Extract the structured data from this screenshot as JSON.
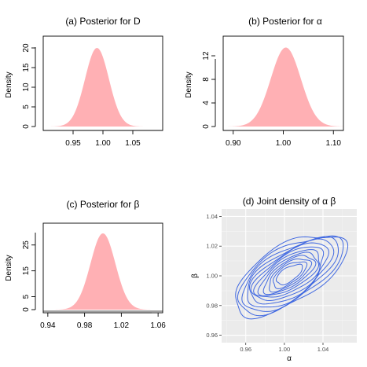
{
  "colors": {
    "density_fill": "#FFB0B4",
    "contour": "#4169E1",
    "gg_panel": "#EBEBEB",
    "gg_grid": "#FFFFFF"
  },
  "chart_data": [
    {
      "type": "area",
      "title": "(a) Posterior for D",
      "ylabel": "Density",
      "xlabel": "",
      "xlim": [
        0.9,
        1.1
      ],
      "ylim": [
        0,
        21
      ],
      "x_ticks": [
        0.95,
        1.0,
        1.05
      ],
      "x_tick_labels": [
        "0.95",
        "1.00",
        "1.05"
      ],
      "y_ticks": [
        0,
        5,
        10,
        15,
        20
      ],
      "y_tick_labels": [
        "0",
        "5",
        "10",
        "15",
        "20"
      ],
      "distribution": {
        "mean": 0.99,
        "sd": 0.02,
        "peak": 20
      },
      "fill": "#FFB0B4"
    },
    {
      "type": "area",
      "title": "(b) Posterior for α",
      "ylabel": "Density",
      "xlabel": "",
      "xlim": [
        0.88,
        1.12
      ],
      "ylim": [
        0,
        14
      ],
      "x_ticks": [
        0.9,
        1.0,
        1.1
      ],
      "x_tick_labels": [
        "0.90",
        "1.00",
        "1.10"
      ],
      "y_ticks": [
        0,
        4,
        8,
        12
      ],
      "y_tick_labels": [
        "0",
        "4",
        "8",
        "12"
      ],
      "distribution": {
        "mean": 1.005,
        "sd": 0.03,
        "peak": 13.4
      },
      "fill": "#FFB0B4"
    },
    {
      "type": "area",
      "title": "(c) Posterior for β",
      "ylabel": "Density",
      "xlabel": "",
      "xlim": [
        0.935,
        1.065
      ],
      "ylim": [
        0,
        31
      ],
      "x_ticks": [
        0.94,
        0.98,
        1.02,
        1.06
      ],
      "x_tick_labels": [
        "0.94",
        "0.98",
        "1.02",
        "1.06"
      ],
      "y_ticks": [
        0,
        5,
        15,
        25
      ],
      "y_tick_labels": [
        "0",
        "5",
        "15",
        "25"
      ],
      "distribution": {
        "mean": 1.0,
        "sd": 0.0135,
        "peak": 29.5
      },
      "fill": "#FFB0B4"
    },
    {
      "type": "contour",
      "title": "(d) Joint density of α β",
      "xlabel": "α",
      "ylabel": "β",
      "xlim": [
        0.935,
        1.075
      ],
      "ylim": [
        0.955,
        1.045
      ],
      "x_ticks": [
        0.96,
        1.0,
        1.04
      ],
      "x_tick_labels": [
        "0.96",
        "1.00",
        "1.04"
      ],
      "y_ticks": [
        0.96,
        0.98,
        1.0,
        1.02,
        1.04
      ],
      "y_tick_labels": [
        "0.96",
        "0.98",
        "1.00",
        "1.02",
        "1.04"
      ],
      "grid": true,
      "center": [
        1.005,
        1.001
      ],
      "contour_levels": 12,
      "color": "#4169E1"
    }
  ]
}
